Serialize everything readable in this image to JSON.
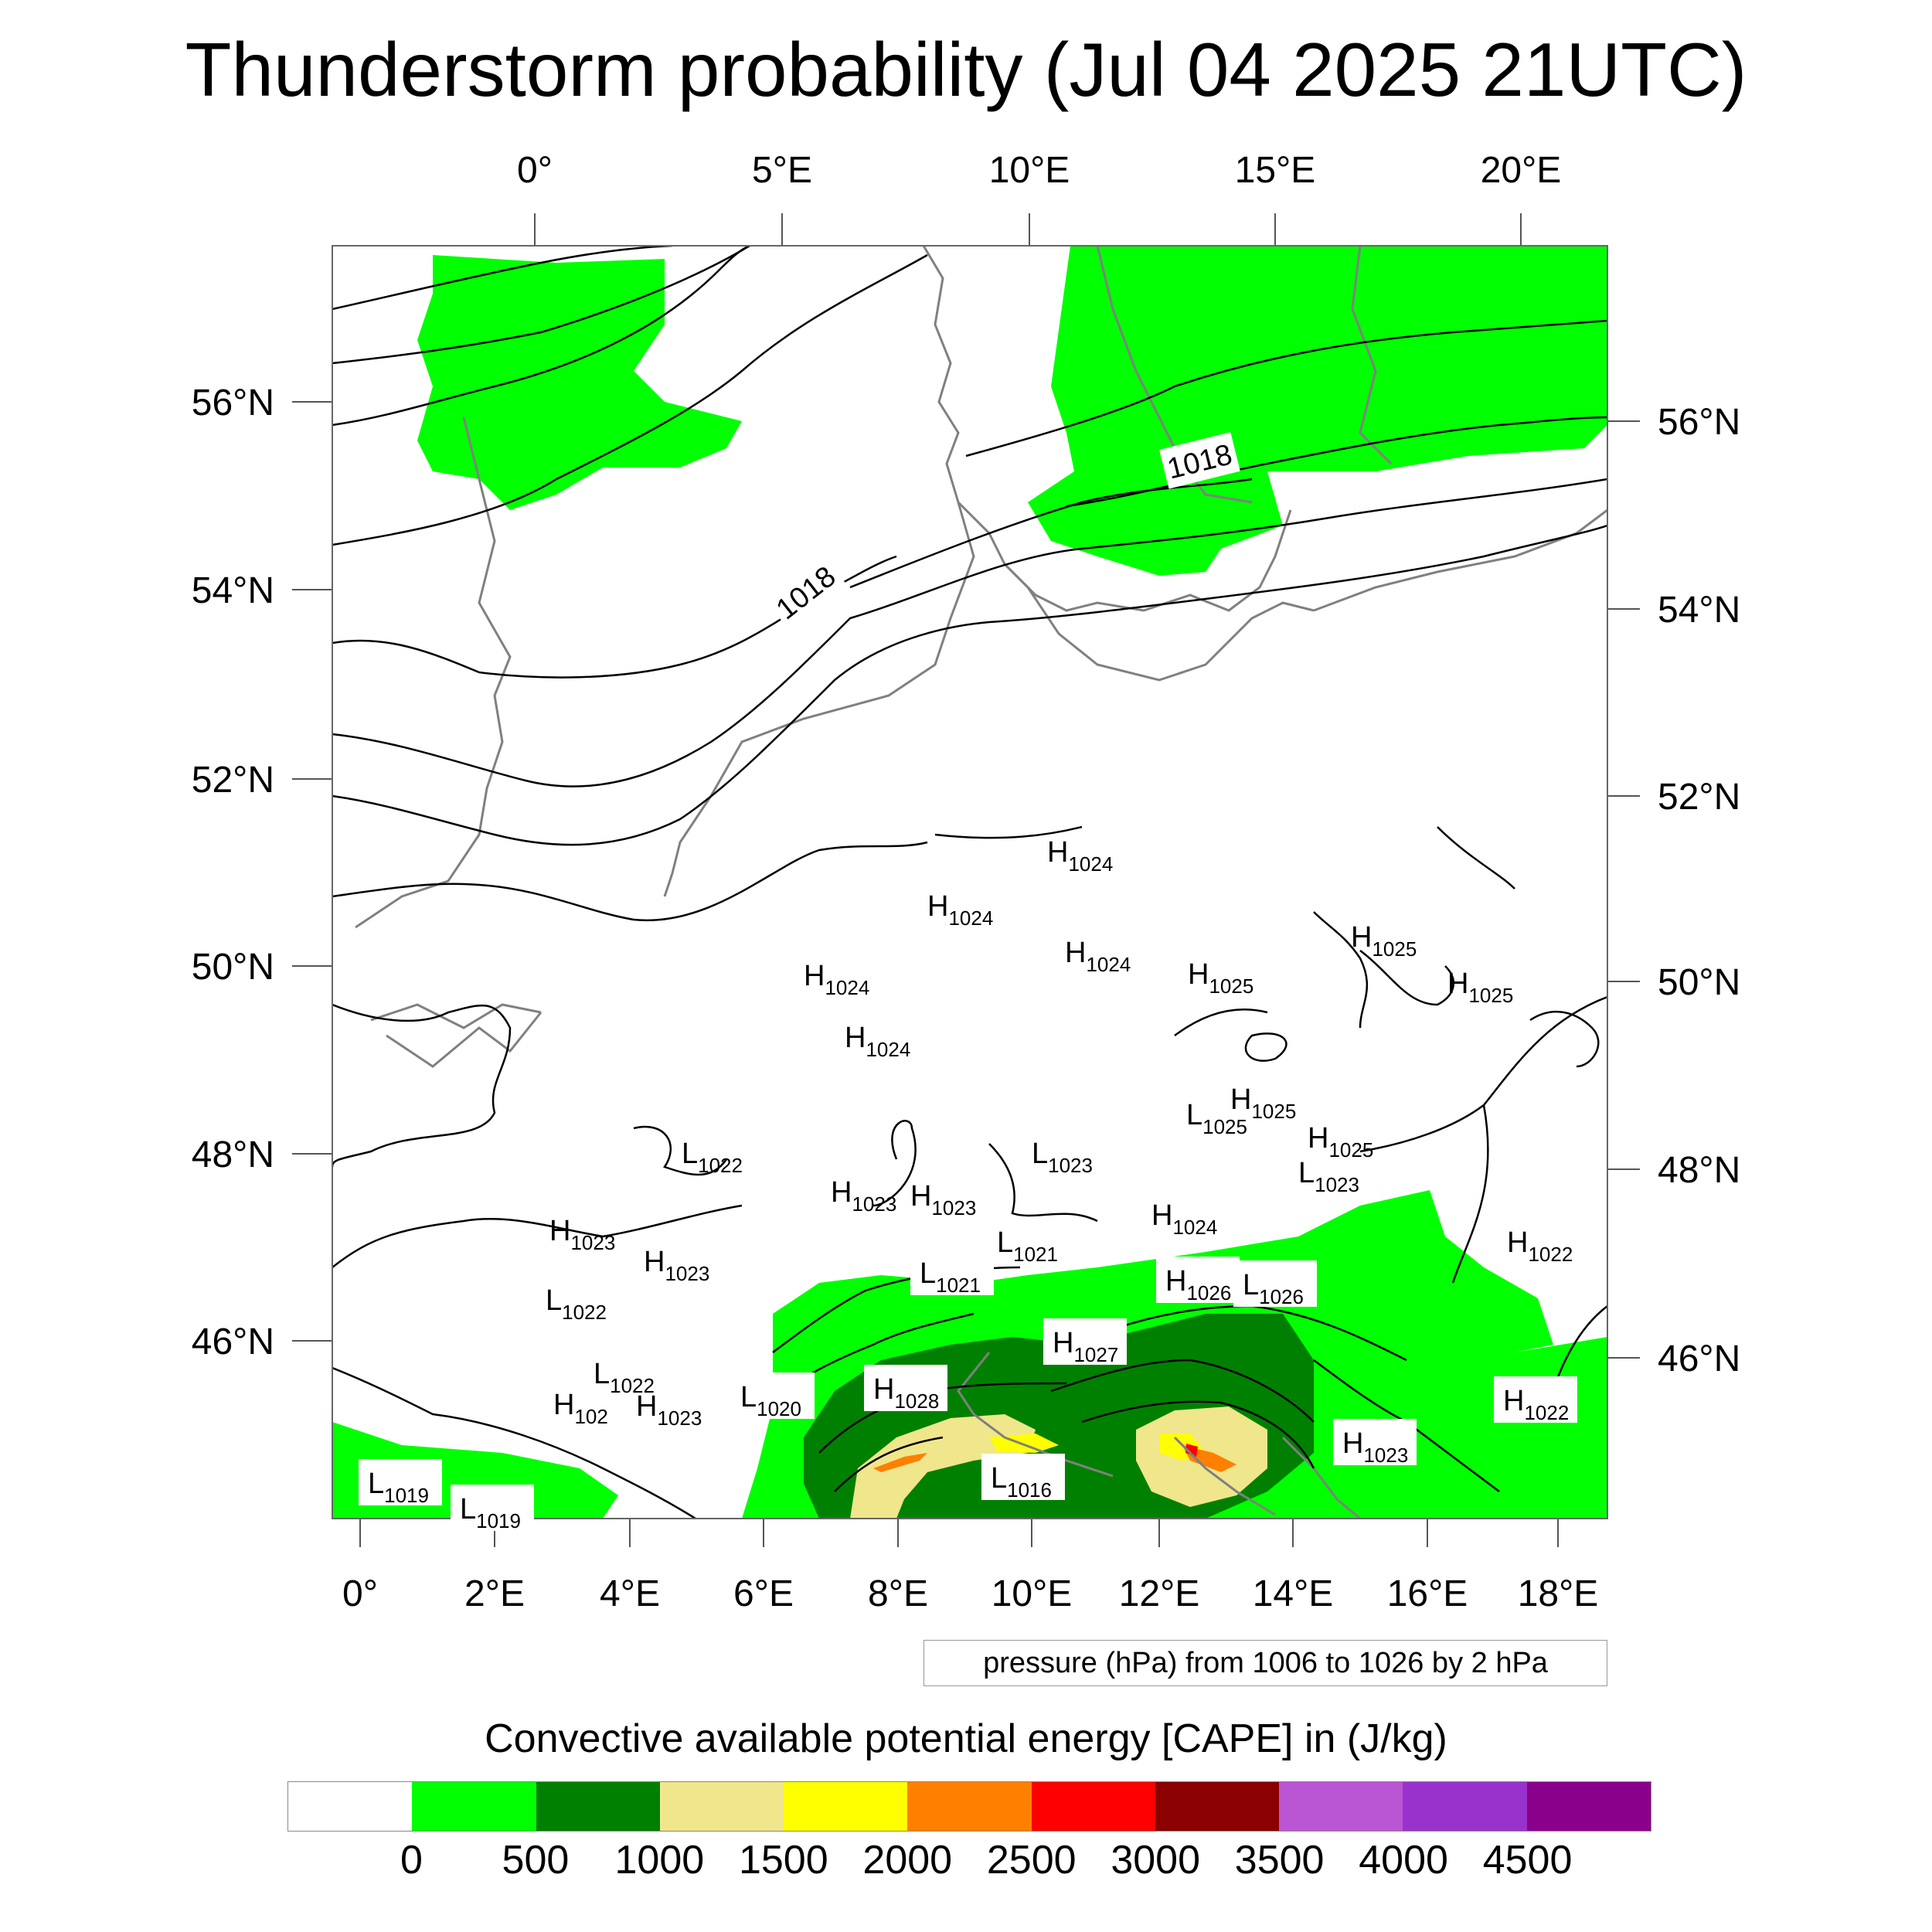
{
  "title": "Thunderstorm probability (Jul 04 2025 21UTC)",
  "map": {
    "top_lon_labels": [
      "0°",
      "5°E",
      "10°E",
      "15°E",
      "20°E"
    ],
    "bottom_lon_labels": [
      "0°",
      "2°E",
      "4°E",
      "6°E",
      "8°E",
      "10°E",
      "12°E",
      "14°E",
      "16°E",
      "18°E"
    ],
    "left_lat_labels": [
      "56°N",
      "54°N",
      "52°N",
      "50°N",
      "48°N",
      "46°N"
    ],
    "right_lat_labels": [
      "56°N",
      "54°N",
      "52°N",
      "50°N",
      "48°N",
      "46°N"
    ],
    "isobar_labels": [
      "1018",
      "1018"
    ],
    "pressure_centers": [
      {
        "letter": "H",
        "value": "1024"
      },
      {
        "letter": "H",
        "value": "1024"
      },
      {
        "letter": "H",
        "value": "1024"
      },
      {
        "letter": "H",
        "value": "1024"
      },
      {
        "letter": "H",
        "value": "1024"
      },
      {
        "letter": "H",
        "value": "1025"
      },
      {
        "letter": "H",
        "value": "1025"
      },
      {
        "letter": "H",
        "value": "1025"
      },
      {
        "letter": "H",
        "value": "1025"
      },
      {
        "letter": "L",
        "value": "1025"
      },
      {
        "letter": "H",
        "value": "1025"
      },
      {
        "letter": "L",
        "value": "1023"
      },
      {
        "letter": "L",
        "value": "1022"
      },
      {
        "letter": "H",
        "value": "1023"
      },
      {
        "letter": "H",
        "value": "1023"
      },
      {
        "letter": "H",
        "value": "1024"
      },
      {
        "letter": "L",
        "value": "1023"
      },
      {
        "letter": "H",
        "value": "1023"
      },
      {
        "letter": "H",
        "value": "1023"
      },
      {
        "letter": "L",
        "value": "1021"
      },
      {
        "letter": "L",
        "value": "1021"
      },
      {
        "letter": "H",
        "value": "1026"
      },
      {
        "letter": "L",
        "value": "1026"
      },
      {
        "letter": "H",
        "value": "1022"
      },
      {
        "letter": "L",
        "value": "1022"
      },
      {
        "letter": "H",
        "value": "1027"
      },
      {
        "letter": "L",
        "value": "1022"
      },
      {
        "letter": "L",
        "value": "1020"
      },
      {
        "letter": "H",
        "value": "1028"
      },
      {
        "letter": "H",
        "value": "102"
      },
      {
        "letter": "H",
        "value": "1023"
      },
      {
        "letter": "H",
        "value": "1022"
      },
      {
        "letter": "H",
        "value": "1023"
      },
      {
        "letter": "L",
        "value": "1016"
      },
      {
        "letter": "L",
        "value": "1019"
      },
      {
        "letter": "L",
        "value": "1019"
      }
    ]
  },
  "pressure_note": "pressure (hPa) from 1006 to 1026 by 2 hPa",
  "colorbar": {
    "title": "Convective available potential energy [CAPE] in (J/kg)",
    "colors": [
      "#ffffff",
      "#00ff00",
      "#008000",
      "#f0e68c",
      "#ffff00",
      "#ff8000",
      "#ff0000",
      "#8b0000",
      "#ba55d3",
      "#9932cc",
      "#8b008b"
    ],
    "tick_labels": [
      "0",
      "500",
      "1000",
      "1500",
      "2000",
      "2500",
      "3000",
      "3500",
      "4000",
      "4500"
    ]
  }
}
